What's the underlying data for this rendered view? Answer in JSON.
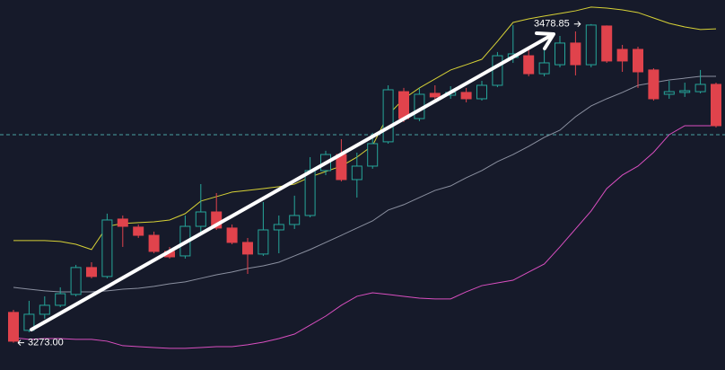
{
  "chart_data": {
    "type": "candlestick",
    "categories": [
      null,
      null,
      null,
      null,
      null,
      null,
      null,
      null,
      null,
      null,
      null,
      null,
      null,
      null,
      null,
      null,
      null,
      null,
      null,
      null,
      null,
      null,
      null,
      null,
      null,
      null,
      null,
      null,
      null,
      null,
      null,
      null,
      null,
      null,
      null,
      null,
      null,
      null,
      null,
      null,
      null,
      null,
      null,
      null,
      null,
      null
    ],
    "open": [
      3292.6,
      3281.0,
      3291.4,
      3297.2,
      3304.2,
      3321.6,
      3315.8,
      3352.9,
      3347.7,
      3342.4,
      3332.0,
      3329.1,
      3348.2,
      3357.5,
      3347.1,
      3337.8,
      3330.3,
      3345.9,
      3349.4,
      3355.2,
      3384.2,
      3394.6,
      3378.4,
      3387.1,
      3402.8,
      3435.2,
      3417.8,
      3434.1,
      3432.9,
      3434.7,
      3430.6,
      3439.3,
      3457.3,
      3458.4,
      3446.8,
      3452.6,
      3466.6,
      3452.6,
      3477.6,
      3462.5,
      3462.5,
      3449.2,
      3433.5,
      3434.7,
      3435.2,
      3439.9
    ],
    "high": [
      3294.3,
      3300.1,
      3303.0,
      3308.8,
      3323.3,
      3325.0,
      3356.4,
      3355.2,
      3349.4,
      3344.8,
      3334.9,
      3355.2,
      3375.5,
      3369.7,
      3349.4,
      3340.7,
      3363.9,
      3355.2,
      3368.0,
      3392.9,
      3397.0,
      3404.5,
      3395.8,
      3408.6,
      3439.3,
      3437.6,
      3437.6,
      3439.3,
      3438.7,
      3437.6,
      3442.2,
      3460.8,
      3478.2,
      3462.5,
      3462.5,
      3471.2,
      3474.1,
      3478.85,
      3478.0,
      3465.4,
      3464.2,
      3450.3,
      3442.2,
      3441.0,
      3449.2,
      3441.0
    ],
    "low": [
      3273.0,
      3279.8,
      3288.5,
      3296.0,
      3303.0,
      3314.6,
      3314.6,
      3334.9,
      3340.7,
      3330.8,
      3327.4,
      3327.4,
      3343.6,
      3345.9,
      3336.6,
      3317.5,
      3329.1,
      3330.8,
      3346.5,
      3354.0,
      3381.3,
      3377.2,
      3366.8,
      3385.4,
      3401.6,
      3415.5,
      3416.1,
      3429.4,
      3430.6,
      3428.3,
      3429.4,
      3438.1,
      3453.8,
      3445.1,
      3445.1,
      3450.9,
      3445.7,
      3450.9,
      3453.8,
      3448.0,
      3437.6,
      3429.4,
      3430.6,
      3431.8,
      3434.1,
      3412.0
    ],
    "close": [
      3274.0,
      3291.4,
      3297.2,
      3304.7,
      3321.6,
      3315.8,
      3352.3,
      3348.2,
      3342.4,
      3332.0,
      3328.5,
      3348.2,
      3357.5,
      3347.1,
      3337.8,
      3330.3,
      3345.9,
      3349.4,
      3355.2,
      3384.2,
      3394.6,
      3378.4,
      3387.1,
      3401.6,
      3436.4,
      3417.8,
      3433.5,
      3431.8,
      3434.7,
      3430.6,
      3439.3,
      3458.4,
      3459.6,
      3446.8,
      3453.8,
      3466.6,
      3452.6,
      3478.2,
      3455.0,
      3455.0,
      3448.0,
      3430.6,
      3435.2,
      3435.8,
      3439.9,
      3413.2
    ],
    "up_color": "#26a69a",
    "down_color": "#e0434c",
    "bands": {
      "upper": {
        "color": "#d6d136",
        "values": [
          3339.0,
          3339.0,
          3339.0,
          3338.4,
          3336.6,
          3333.2,
          3348.2,
          3350.0,
          3350.6,
          3351.1,
          3352.3,
          3356.4,
          3364.5,
          3367.4,
          3370.3,
          3371.4,
          3372.6,
          3373.8,
          3375.5,
          3380.1,
          3383.6,
          3387.1,
          3392.9,
          3400.4,
          3420.2,
          3430.6,
          3437.6,
          3443.4,
          3449.2,
          3452.6,
          3456.1,
          3467.7,
          3479.9,
          3482.2,
          3484.0,
          3485.7,
          3487.4,
          3489.8,
          3489.2,
          3488.0,
          3486.3,
          3482.8,
          3479.3,
          3477.0,
          3475.3,
          3475.8
        ]
      },
      "middle": {
        "color": "#8b90a0",
        "values": [
          3308.8,
          3307.6,
          3306.5,
          3305.9,
          3305.9,
          3305.9,
          3306.5,
          3307.6,
          3308.2,
          3309.4,
          3311.1,
          3312.3,
          3314.6,
          3316.9,
          3318.7,
          3321.0,
          3322.7,
          3325.0,
          3329.1,
          3333.2,
          3337.8,
          3342.4,
          3347.1,
          3351.7,
          3358.7,
          3362.2,
          3366.8,
          3371.4,
          3374.3,
          3379.6,
          3384.2,
          3390.0,
          3394.6,
          3399.9,
          3405.7,
          3410.3,
          3419.0,
          3426.0,
          3430.6,
          3434.7,
          3439.3,
          3441.0,
          3442.8,
          3443.9,
          3445.1,
          3445.1
        ]
      },
      "lower": {
        "color": "#d94fc0",
        "values": [
          3276.3,
          3275.2,
          3275.7,
          3275.7,
          3275.2,
          3275.2,
          3274.0,
          3271.1,
          3270.5,
          3269.9,
          3269.4,
          3269.4,
          3269.9,
          3270.5,
          3270.5,
          3271.7,
          3273.4,
          3275.7,
          3278.6,
          3284.4,
          3290.2,
          3297.2,
          3303.0,
          3305.3,
          3304.2,
          3303.0,
          3301.8,
          3301.3,
          3301.3,
          3305.9,
          3309.9,
          3311.7,
          3313.4,
          3318.7,
          3323.9,
          3334.9,
          3346.5,
          3358.1,
          3372.6,
          3381.3,
          3387.1,
          3396.0,
          3407.4,
          3413.2,
          3413.2,
          3413.2
        ]
      }
    },
    "price_line": {
      "value": 3407.4,
      "color": "#4aa3a3"
    },
    "high_label": "3478.85",
    "low_label": "3273.00",
    "ylim": [
      3255.4,
      3494.4
    ]
  }
}
